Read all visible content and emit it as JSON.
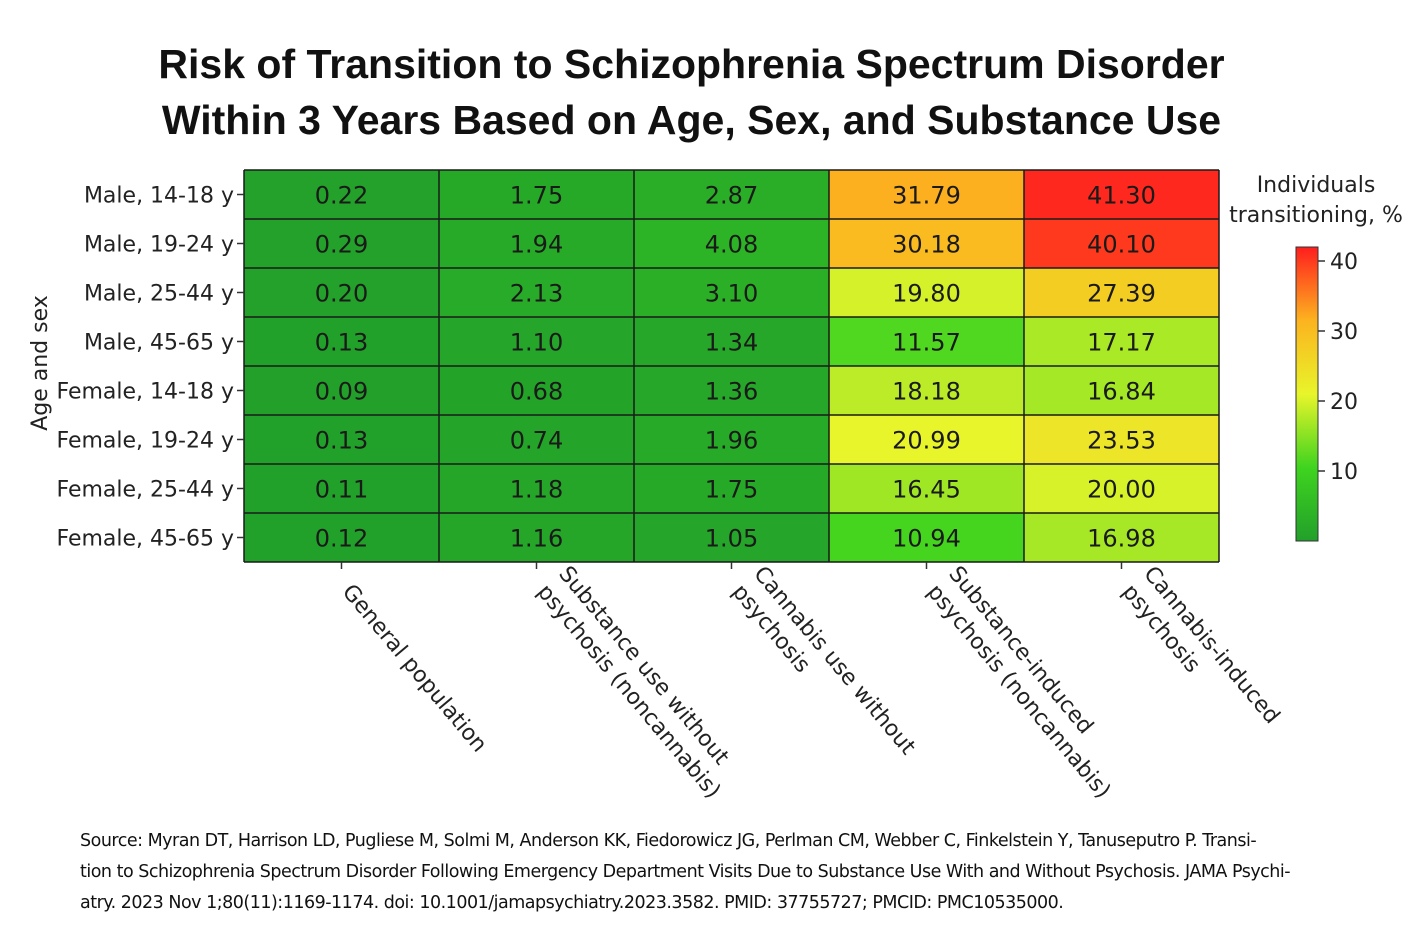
{
  "title_line1": "Risk of Transition to Schizophrenia Spectrum Disorder",
  "title_line2": "Within 3 Years Based on Age, Sex, and Substance Use",
  "chart_data": {
    "type": "heatmap",
    "ylabel": "Age and sex",
    "rows": [
      "Male, 14-18 y",
      "Male, 19-24 y",
      "Male, 25-44 y",
      "Male, 45-65 y",
      "Female, 14-18 y",
      "Female, 19-24 y",
      "Female, 25-44 y",
      "Female, 45-65 y"
    ],
    "columns": [
      [
        "General population"
      ],
      [
        "Substance use without",
        "psychosis (noncannabis)"
      ],
      [
        "Cannabis use without",
        "psychosis"
      ],
      [
        "Substance-induced",
        "psychosis (noncannabis)"
      ],
      [
        "Cannabis-induced",
        "psychosis"
      ]
    ],
    "values": [
      [
        0.22,
        1.75,
        2.87,
        31.79,
        41.3
      ],
      [
        0.29,
        1.94,
        4.08,
        30.18,
        40.1
      ],
      [
        0.2,
        2.13,
        3.1,
        19.8,
        27.39
      ],
      [
        0.13,
        1.1,
        1.34,
        11.57,
        17.17
      ],
      [
        0.09,
        0.68,
        1.36,
        18.18,
        16.84
      ],
      [
        0.13,
        0.74,
        1.96,
        20.99,
        23.53
      ],
      [
        0.11,
        1.18,
        1.75,
        16.45,
        20.0
      ],
      [
        0.12,
        1.16,
        1.05,
        10.94,
        16.98
      ]
    ],
    "labels": [
      [
        "0.22",
        "1.75",
        "2.87",
        "31.79",
        "41.30"
      ],
      [
        "0.29",
        "1.94",
        "4.08",
        "30.18",
        "40.10"
      ],
      [
        "0.20",
        "2.13",
        "3.10",
        "19.80",
        "27.39"
      ],
      [
        "0.13",
        "1.10",
        "1.34",
        "11.57",
        "17.17"
      ],
      [
        "0.09",
        "0.68",
        "1.36",
        "18.18",
        "16.84"
      ],
      [
        "0.13",
        "0.74",
        "1.96",
        "20.99",
        "23.53"
      ],
      [
        "0.11",
        "1.18",
        "1.75",
        "16.45",
        "20.00"
      ],
      [
        "0.12",
        "1.16",
        "1.05",
        "10.94",
        "16.98"
      ]
    ],
    "colorbar": {
      "title": [
        "Individuals",
        "transitioning, %"
      ],
      "ticks": [
        10,
        20,
        30,
        40
      ],
      "range": [
        0,
        42
      ],
      "colors": [
        "#22a02a",
        "#3fd41f",
        "#e8f52a",
        "#fcb31f",
        "#ff1e1e"
      ]
    }
  },
  "source": {
    "line1": "Source:  Myran DT, Harrison LD, Pugliese M, Solmi M, Anderson KK, Fiedorowicz JG, Perlman CM, Webber C, Finkelstein Y, Tanuseputro P. Transi-",
    "line2": "tion to Schizophrenia Spectrum Disorder Following Emergency Department Visits Due to Substance Use With and Without Psychosis. JAMA Psychi-",
    "line3": "atry. 2023 Nov 1;80(11):1169-1174. doi: 10.1001/jamapsychiatry.2023.3582. PMID: 37755727; PMCID: PMC10535000."
  }
}
